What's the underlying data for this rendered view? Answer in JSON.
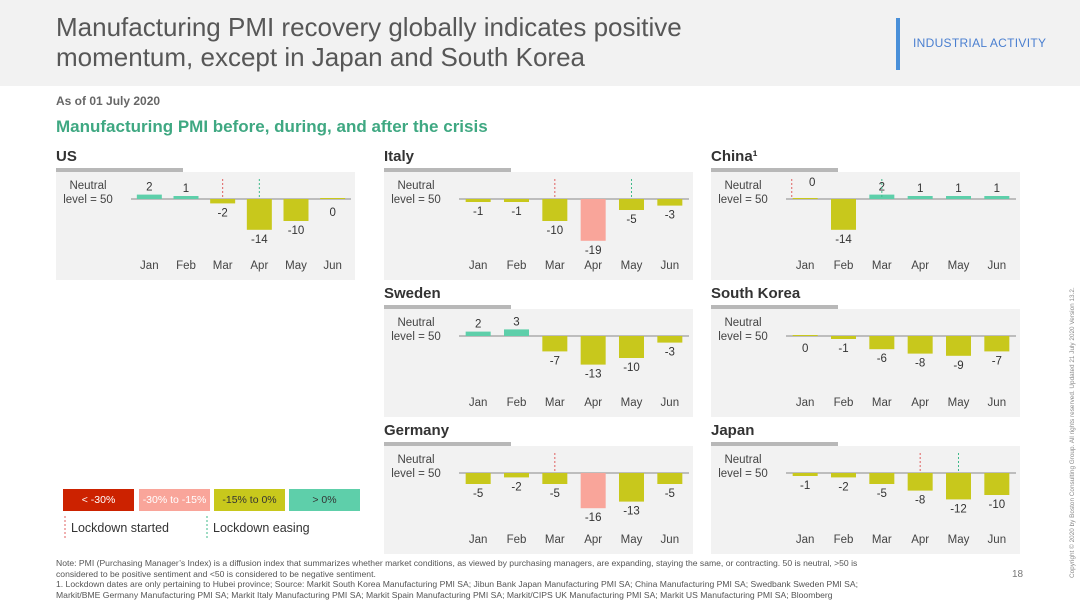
{
  "header": {
    "title_line1": "Manufacturing PMI recovery globally indicates positive",
    "title_line2": "momentum, except in Japan and South Korea",
    "section_tag": "INDUSTRIAL ACTIVITY"
  },
  "as_of": "As of 01 July 2020",
  "subtitle": "Manufacturing PMI before, during, and after the crisis",
  "neutral_label_1": "Neutral",
  "neutral_label_2": "level = 50",
  "colors": {
    "deep_red": "#cc2200",
    "pink": "#f9a59a",
    "yellow": "#c8c81c",
    "green": "#5ecfaa",
    "lockdown_start": "#e06060",
    "lockdown_ease": "#3fba8a"
  },
  "chart_data": [
    {
      "type": "bar",
      "title": "US",
      "categories": [
        "Jan",
        "Feb",
        "Mar",
        "Apr",
        "May",
        "Jun"
      ],
      "values": [
        2,
        1,
        -2,
        -14,
        -10,
        0
      ],
      "lockdown_started_after": 2,
      "lockdown_easing_after": 3
    },
    {
      "type": "bar",
      "title": "Italy",
      "categories": [
        "Jan",
        "Feb",
        "Mar",
        "Apr",
        "May",
        "Jun"
      ],
      "values": [
        -1,
        -1,
        -10,
        -19,
        -5,
        -3
      ],
      "lockdown_started_after": 2,
      "lockdown_easing_after": 4
    },
    {
      "type": "bar",
      "title": "China¹",
      "categories": [
        "Jan",
        "Feb",
        "Mar",
        "Apr",
        "May",
        "Jun"
      ],
      "values": [
        0,
        -14,
        2,
        1,
        1,
        1
      ],
      "lockdown_started_after": 0,
      "lockdown_easing_after": 2
    },
    {
      "type": "bar",
      "title": "Sweden",
      "categories": [
        "Jan",
        "Feb",
        "Mar",
        "Apr",
        "May",
        "Jun"
      ],
      "values": [
        2,
        3,
        -7,
        -13,
        -10,
        -3
      ]
    },
    {
      "type": "bar",
      "title": "South Korea",
      "categories": [
        "Jan",
        "Feb",
        "Mar",
        "Apr",
        "May",
        "Jun"
      ],
      "values": [
        0,
        -1,
        -6,
        -8,
        -9,
        -7
      ]
    },
    {
      "type": "bar",
      "title": "Germany",
      "categories": [
        "Jan",
        "Feb",
        "Mar",
        "Apr",
        "May",
        "Jun"
      ],
      "values": [
        -5,
        -2,
        -5,
        -16,
        -13,
        -5
      ],
      "lockdown_started_after": 2
    },
    {
      "type": "bar",
      "title": "Japan",
      "categories": [
        "Jan",
        "Feb",
        "Mar",
        "Apr",
        "May",
        "Jun"
      ],
      "values": [
        -1,
        -2,
        -5,
        -8,
        -12,
        -10
      ],
      "lockdown_started_after": 3,
      "lockdown_easing_after": 4
    }
  ],
  "legend": {
    "items": [
      {
        "label": "< -30%",
        "color": "#cc2200",
        "text_color": "#ffffff"
      },
      {
        "label": "-30% to -15%",
        "color": "#f9a59a",
        "text_color": "#ffffff"
      },
      {
        "label": "-15% to 0%",
        "color": "#c8c81c",
        "text_color": "#333333"
      },
      {
        "label": "> 0%",
        "color": "#5ecfaa",
        "text_color": "#333333"
      }
    ],
    "lockdown_started": "Lockdown started",
    "lockdown_easing": "Lockdown easing"
  },
  "note_line1": "Note: PMI (Purchasing Manager’s Index) is a diffusion index that summarizes whether market conditions, as viewed by purchasing managers, are expanding, staying the same, or contracting. 50 is neutral, >50 is",
  "note_line2": "considered to be positive sentiment and <50 is considered to be negative sentiment.",
  "note_line3": "1. Lockdown dates are only pertaining to Hubei province;  Source: Markit South Korea Manufacturing PMI SA; Jibun Bank Japan Manufacturing PMI SA; China Manufacturing PMI SA; Swedbank Sweden PMI SA;",
  "note_line4": "Markit/BME Germany Manufacturing PMI SA; Markit Italy Manufacturing PMI SA; Markit Spain Manufacturing PMI SA; Markit/CIPS UK Manufacturing PMI SA; Markit US Manufacturing PMI SA; Bloomberg",
  "page_number": "18",
  "copyright": "Copyright © 2020 by Boston Consulting Group. All rights reserved. Updated 21 July 2020 Version 13.2."
}
